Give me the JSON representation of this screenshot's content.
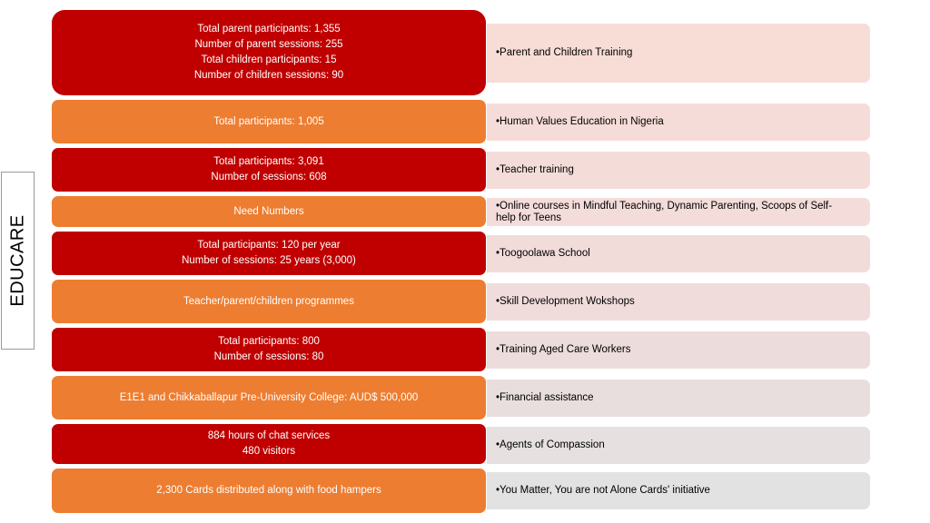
{
  "side_label": "EDUCARE",
  "colors": {
    "red": "#c00000",
    "orange": "#ed7d31",
    "pink_light": "#f8dcd6",
    "pink_mid": "#f3dcda",
    "pink_gray": "#efdbdb",
    "gray": "#e6e0e0",
    "gray_light": "#e2e2e2"
  },
  "rows": [
    {
      "color": "red",
      "left_lines": [
        "Total parent participants: 1,355",
        "Number of parent sessions: 255",
        "Total children participants: 15",
        "Number of children sessions: 90"
      ],
      "right": "•Parent and Children Training",
      "right_color": "#f8dcd6"
    },
    {
      "color": "orange",
      "left_lines": [
        "Total participants: 1,005"
      ],
      "right": "•Human Values Education in Nigeria",
      "right_color": "#f6dcd8"
    },
    {
      "color": "red",
      "left_lines": [
        "Total participants: 3,091",
        "Number of sessions: 608"
      ],
      "right": "•Teacher training",
      "right_color": "#f4dcd9"
    },
    {
      "color": "orange",
      "left_lines": [
        "Need Numbers"
      ],
      "right": "•Online courses in Mindful Teaching, Dynamic Parenting, Scoops of Self-help for Teens",
      "right_color": "#f3dcda"
    },
    {
      "color": "red",
      "left_lines": [
        "Total participants: 120 per year",
        "Number of sessions: 25 years (3,000)"
      ],
      "right": "•Toogoolawa School",
      "right_color": "#f1dcda"
    },
    {
      "color": "orange",
      "left_lines": [
        "Teacher/parent/children programmes"
      ],
      "right": "•Skill Development Wokshops",
      "right_color": "#efdcdb"
    },
    {
      "color": "red",
      "left_lines": [
        "Total participants: 800",
        "Number of sessions: 80"
      ],
      "right": "•Training Aged Care Workers",
      "right_color": "#ecdcdb"
    },
    {
      "color": "orange",
      "left_lines": [
        "E1E1 and Chikkaballapur Pre-University College: AUD$ 500,000"
      ],
      "right": "•Financial assistance",
      "right_color": "#e9dede"
    },
    {
      "color": "red",
      "left_lines": [
        "884 hours of chat services",
        "480 visitors"
      ],
      "right": "•Agents of Compassion",
      "right_color": "#e6e0e0"
    },
    {
      "color": "orange",
      "left_lines": [
        "2,300 Cards distributed along with food hampers"
      ],
      "right": "•You Matter, You are not Alone Cards' initiative",
      "right_color": "#e2e2e2"
    }
  ]
}
